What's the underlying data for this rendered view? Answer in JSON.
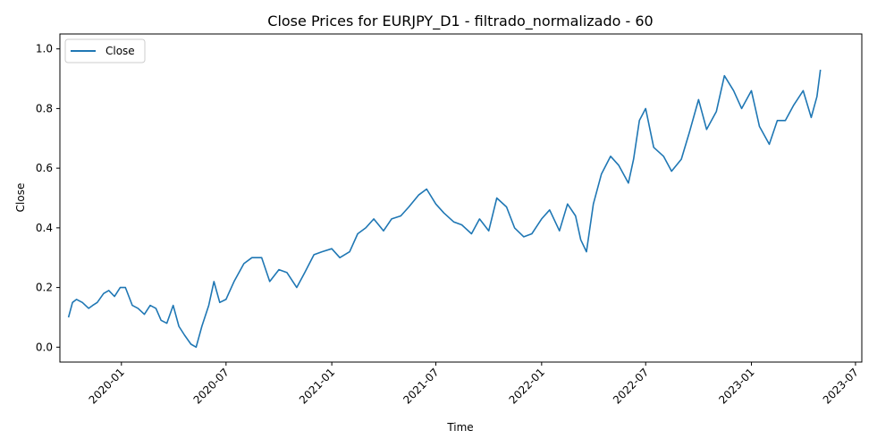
{
  "chart_data": {
    "type": "line",
    "title": "Close Prices for EURJPY_D1 - filtrado_normalizado - 60",
    "xlabel": "Time",
    "ylabel": "Close",
    "ylim": [
      -0.05,
      1.05
    ],
    "xlim": [
      "2019-09-16",
      "2023-07-12"
    ],
    "grid": false,
    "legend_position": "upper-left",
    "x_ticks": [
      "2020-01",
      "2020-07",
      "2021-01",
      "2021-07",
      "2022-01",
      "2022-07",
      "2023-01",
      "2023-07"
    ],
    "y_ticks": [
      "0.0",
      "0.2",
      "0.4",
      "0.6",
      "0.8",
      "1.0"
    ],
    "series": [
      {
        "name": "Close",
        "color": "#1f77b4",
        "x": [
          "2019-10-01",
          "2019-10-08",
          "2019-10-15",
          "2019-10-25",
          "2019-11-05",
          "2019-11-12",
          "2019-11-20",
          "2019-12-01",
          "2019-12-10",
          "2019-12-20",
          "2019-12-30",
          "2020-01-08",
          "2020-01-20",
          "2020-01-30",
          "2020-02-10",
          "2020-02-20",
          "2020-03-01",
          "2020-03-10",
          "2020-03-20",
          "2020-03-31",
          "2020-04-10",
          "2020-04-20",
          "2020-05-01",
          "2020-05-10",
          "2020-05-20",
          "2020-06-01",
          "2020-06-10",
          "2020-06-20",
          "2020-07-01",
          "2020-07-15",
          "2020-08-01",
          "2020-08-15",
          "2020-09-01",
          "2020-09-15",
          "2020-10-01",
          "2020-10-15",
          "2020-11-01",
          "2020-11-15",
          "2020-12-01",
          "2020-12-15",
          "2021-01-01",
          "2021-01-15",
          "2021-02-01",
          "2021-02-15",
          "2021-03-01",
          "2021-03-15",
          "2021-04-01",
          "2021-04-15",
          "2021-05-01",
          "2021-05-15",
          "2021-06-01",
          "2021-06-15",
          "2021-07-01",
          "2021-07-15",
          "2021-08-01",
          "2021-08-15",
          "2021-09-01",
          "2021-09-15",
          "2021-10-01",
          "2021-10-15",
          "2021-11-01",
          "2021-11-15",
          "2021-12-01",
          "2021-12-15",
          "2022-01-01",
          "2022-01-15",
          "2022-02-01",
          "2022-02-15",
          "2022-03-01",
          "2022-03-10",
          "2022-03-20",
          "2022-04-01",
          "2022-04-15",
          "2022-05-01",
          "2022-05-15",
          "2022-06-01",
          "2022-06-10",
          "2022-06-20",
          "2022-07-01",
          "2022-07-15",
          "2022-08-01",
          "2022-08-15",
          "2022-09-01",
          "2022-09-15",
          "2022-10-01",
          "2022-10-15",
          "2022-11-01",
          "2022-11-15",
          "2022-12-01",
          "2022-12-15",
          "2023-01-01",
          "2023-01-15",
          "2023-02-01",
          "2023-02-15",
          "2023-03-01",
          "2023-03-15",
          "2023-04-01",
          "2023-04-15",
          "2023-04-25",
          "2023-05-01"
        ],
        "y": [
          0.1,
          0.15,
          0.16,
          0.15,
          0.13,
          0.14,
          0.15,
          0.18,
          0.19,
          0.17,
          0.2,
          0.2,
          0.14,
          0.13,
          0.11,
          0.14,
          0.13,
          0.09,
          0.08,
          0.14,
          0.07,
          0.04,
          0.01,
          0.0,
          0.07,
          0.14,
          0.22,
          0.15,
          0.16,
          0.22,
          0.28,
          0.3,
          0.3,
          0.22,
          0.26,
          0.25,
          0.2,
          0.25,
          0.31,
          0.32,
          0.33,
          0.3,
          0.32,
          0.38,
          0.4,
          0.43,
          0.39,
          0.43,
          0.44,
          0.47,
          0.51,
          0.53,
          0.48,
          0.45,
          0.42,
          0.41,
          0.38,
          0.43,
          0.39,
          0.5,
          0.47,
          0.4,
          0.37,
          0.38,
          0.43,
          0.46,
          0.39,
          0.48,
          0.44,
          0.36,
          0.32,
          0.48,
          0.58,
          0.64,
          0.61,
          0.55,
          0.63,
          0.76,
          0.8,
          0.67,
          0.64,
          0.59,
          0.63,
          0.72,
          0.83,
          0.73,
          0.79,
          0.91,
          0.86,
          0.8,
          0.86,
          0.74,
          0.68,
          0.76,
          0.76,
          0.81,
          0.86,
          0.77,
          0.84,
          0.93
        ]
      }
    ]
  }
}
